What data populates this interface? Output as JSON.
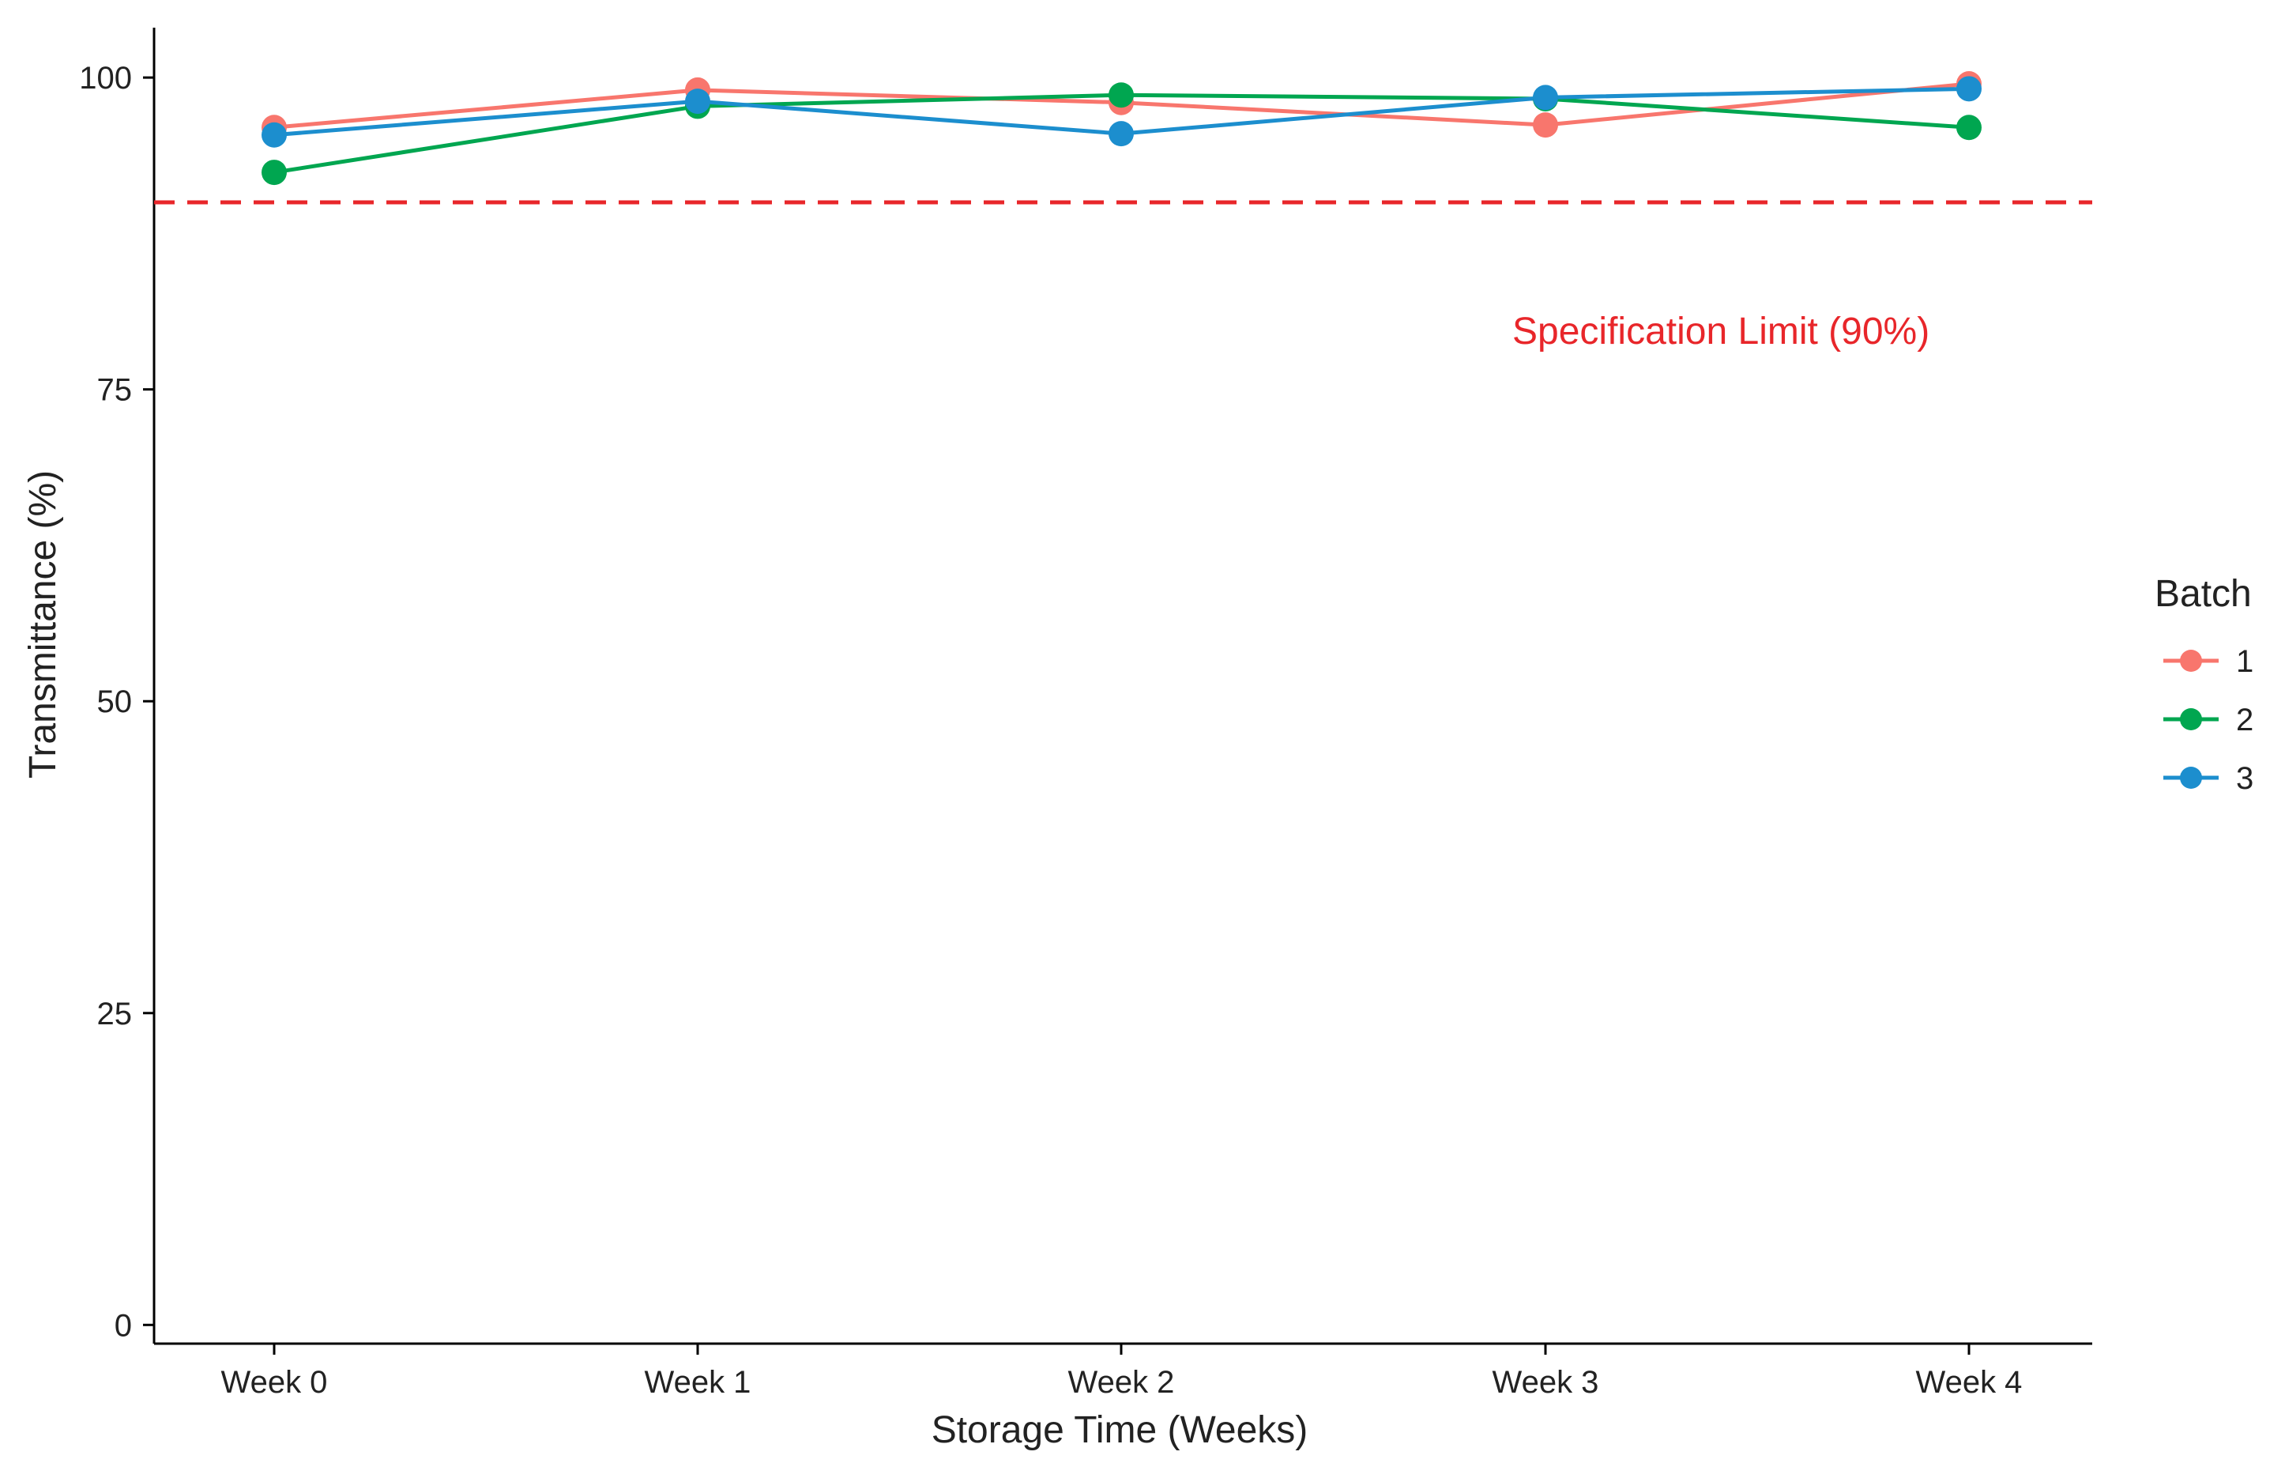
{
  "chart_data": {
    "type": "line",
    "title": "",
    "xlabel": "Storage Time (Weeks)",
    "ylabel": "Transmittance (%)",
    "categories": [
      "Week 0",
      "Week 1",
      "Week 2",
      "Week 3",
      "Week 4"
    ],
    "ylim": [
      -1.5,
      104
    ],
    "yticks": [
      0,
      25,
      50,
      75,
      100
    ],
    "grid": false,
    "legend": {
      "title": "Batch",
      "position": "right"
    },
    "series": [
      {
        "name": "1",
        "color": "#F8766D",
        "values": [
          96,
          99,
          98,
          96.2,
          99.5
        ]
      },
      {
        "name": "2",
        "color": "#00A650",
        "values": [
          92.4,
          97.7,
          98.6,
          98.3,
          96
        ]
      },
      {
        "name": "3",
        "color": "#1C8ECE",
        "values": [
          95.4,
          98.1,
          95.5,
          98.4,
          99.1
        ]
      }
    ],
    "reference_line": {
      "value": 90,
      "color": "#E8262A",
      "style": "dashed",
      "label": "Specification Limit (90%)"
    }
  }
}
